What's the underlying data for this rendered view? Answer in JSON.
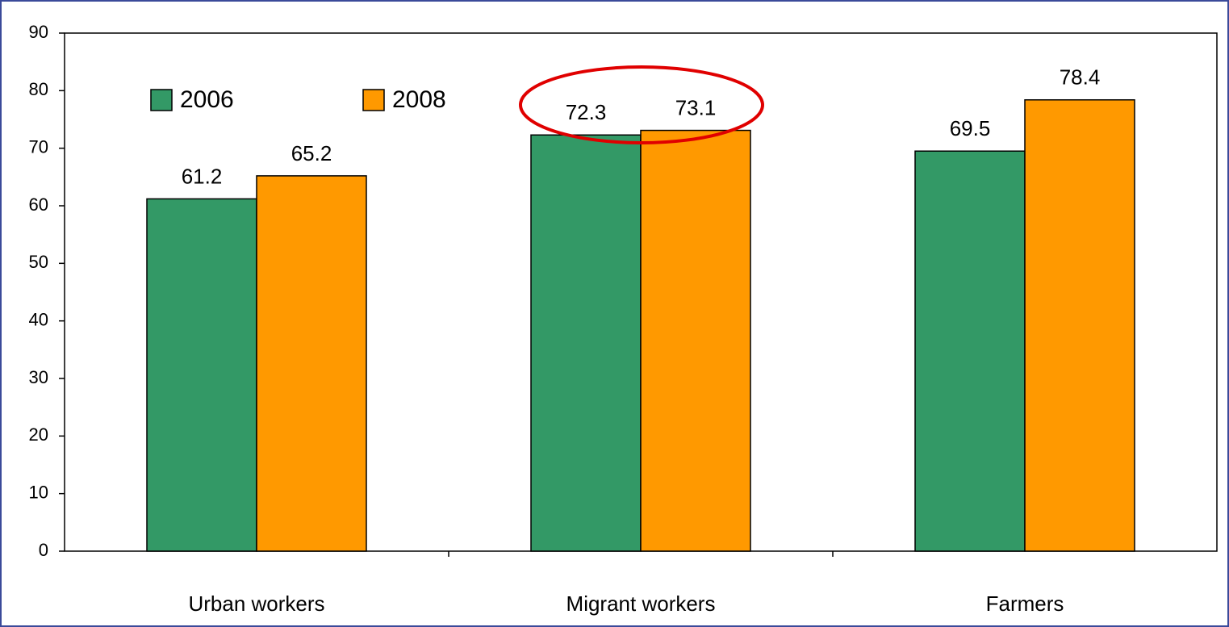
{
  "chart_data": {
    "type": "bar",
    "categories": [
      "Urban workers",
      "Migrant workers",
      "Farmers"
    ],
    "series": [
      {
        "name": "2006",
        "color": "#339966",
        "values": [
          61.2,
          72.3,
          69.5
        ]
      },
      {
        "name": "2008",
        "color": "#ff9900",
        "values": [
          65.2,
          73.1,
          78.4
        ]
      }
    ],
    "ylim": [
      0,
      90
    ],
    "yticks": [
      0,
      10,
      20,
      30,
      40,
      50,
      60,
      70,
      80,
      90
    ],
    "grid": false
  }
}
